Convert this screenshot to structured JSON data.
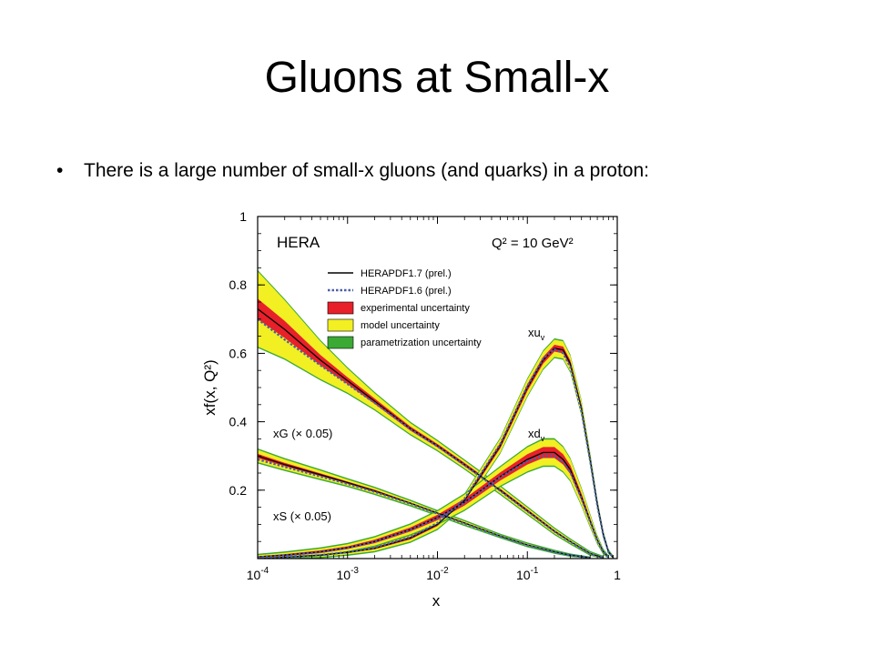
{
  "slide": {
    "title": "Gluons at Small-x",
    "bullet_symbol": "•",
    "bullet_text": "There is a large number of small-x gluons (and quarks) in a proton:"
  },
  "chart_data": {
    "type": "line",
    "collaboration_label": "HERA",
    "q2_label": "Q² = 10 GeV²",
    "xlabel": "x",
    "ylabel": "xf(x, Q²)",
    "x_scale": "log",
    "xlim": [
      0.0001,
      1
    ],
    "ylim": [
      0,
      1
    ],
    "x_ticks": [
      {
        "value": 0.0001,
        "base": "10",
        "exp": "-4"
      },
      {
        "value": 0.001,
        "base": "10",
        "exp": "-3"
      },
      {
        "value": 0.01,
        "base": "10",
        "exp": "-2"
      },
      {
        "value": 0.1,
        "base": "10",
        "exp": "-1"
      },
      {
        "value": 1,
        "base": "1",
        "exp": ""
      }
    ],
    "y_ticks": [
      {
        "value": 0.2,
        "label": "0.2"
      },
      {
        "value": 0.4,
        "label": "0.4"
      },
      {
        "value": 0.6,
        "label": "0.6"
      },
      {
        "value": 0.8,
        "label": "0.8"
      },
      {
        "value": 1.0,
        "label": "1"
      }
    ],
    "legend": [
      {
        "label": "HERAPDF1.7 (prel.)",
        "kind": "line",
        "color": "#000000"
      },
      {
        "label": "HERAPDF1.6 (prel.)",
        "kind": "dotted",
        "color": "#4a5fa8"
      },
      {
        "label": "experimental uncertainty",
        "kind": "box",
        "color": "#e8202a"
      },
      {
        "label": "model uncertainty",
        "kind": "box",
        "color": "#f2ef22"
      },
      {
        "label": "parametrization uncertainty",
        "kind": "box",
        "color": "#3aaa35"
      }
    ],
    "colors": {
      "experimental": "#e8202a",
      "model": "#f2ef22",
      "parametrization": "#3aaa35",
      "line17": "#000000",
      "line16": "#4a5fa8"
    },
    "series": [
      {
        "name": "xG (× 0.05)",
        "x": [
          0.0001,
          0.0002,
          0.0005,
          0.001,
          0.002,
          0.005,
          0.01,
          0.02,
          0.05,
          0.1,
          0.2,
          0.3,
          0.5,
          0.7
        ],
        "y": [
          0.73,
          0.67,
          0.58,
          0.52,
          0.46,
          0.38,
          0.33,
          0.275,
          0.2,
          0.14,
          0.08,
          0.05,
          0.015,
          0.002
        ],
        "band_model": [
          0.08,
          0.06,
          0.04,
          0.025,
          0.015,
          0.01,
          0.008,
          0.006,
          0.006,
          0.005,
          0.004,
          0.003,
          0.002,
          0.001
        ],
        "band_exp": [
          0.03,
          0.025,
          0.015,
          0.01,
          0.008,
          0.006,
          0.005,
          0.005,
          0.004,
          0.004,
          0.003,
          0.002,
          0.001,
          0.001
        ],
        "y_alt": [
          0.7,
          0.64,
          0.565,
          0.51,
          0.455,
          0.378,
          0.328,
          0.273,
          0.198,
          0.138,
          0.079,
          0.049,
          0.014,
          0.002
        ]
      },
      {
        "name": "xS (× 0.05)",
        "x": [
          0.0001,
          0.0002,
          0.0005,
          0.001,
          0.002,
          0.005,
          0.01,
          0.02,
          0.05,
          0.1,
          0.2,
          0.3,
          0.5
        ],
        "y": [
          0.3,
          0.275,
          0.245,
          0.222,
          0.198,
          0.162,
          0.133,
          0.104,
          0.066,
          0.04,
          0.02,
          0.01,
          0.002
        ],
        "band_model": [
          0.012,
          0.01,
          0.008,
          0.006,
          0.005,
          0.004,
          0.003,
          0.003,
          0.002,
          0.002,
          0.001,
          0.001,
          0.0
        ],
        "band_exp": [
          0.006,
          0.005,
          0.004,
          0.003,
          0.003,
          0.002,
          0.002,
          0.002,
          0.001,
          0.001,
          0.001,
          0.0,
          0.0
        ],
        "y_alt": [
          0.29,
          0.268,
          0.24,
          0.218,
          0.195,
          0.16,
          0.131,
          0.102,
          0.065,
          0.039,
          0.019,
          0.01,
          0.002
        ]
      },
      {
        "name": "xu_v",
        "label_base": "xu",
        "label_sub": "v",
        "x": [
          0.0001,
          0.0002,
          0.0005,
          0.001,
          0.002,
          0.005,
          0.01,
          0.02,
          0.05,
          0.1,
          0.15,
          0.2,
          0.25,
          0.3,
          0.4,
          0.5,
          0.6,
          0.7,
          0.8,
          0.9
        ],
        "y": [
          0.0,
          0.004,
          0.01,
          0.018,
          0.03,
          0.06,
          0.1,
          0.17,
          0.33,
          0.5,
          0.58,
          0.615,
          0.61,
          0.57,
          0.44,
          0.29,
          0.16,
          0.07,
          0.02,
          0.003
        ],
        "band_model": [
          0.002,
          0.002,
          0.003,
          0.004,
          0.005,
          0.006,
          0.008,
          0.01,
          0.012,
          0.014,
          0.015,
          0.015,
          0.015,
          0.014,
          0.012,
          0.01,
          0.007,
          0.004,
          0.002,
          0.001
        ],
        "band_exp": [
          0.001,
          0.001,
          0.002,
          0.002,
          0.003,
          0.004,
          0.005,
          0.006,
          0.008,
          0.01,
          0.01,
          0.01,
          0.01,
          0.009,
          0.008,
          0.006,
          0.004,
          0.003,
          0.001,
          0.001
        ],
        "y_alt": [
          0.0,
          0.004,
          0.01,
          0.019,
          0.032,
          0.063,
          0.104,
          0.175,
          0.335,
          0.505,
          0.585,
          0.612,
          0.6,
          0.56,
          0.43,
          0.285,
          0.155,
          0.068,
          0.019,
          0.003
        ]
      },
      {
        "name": "xd_v",
        "label_base": "xd",
        "label_sub": "v",
        "x": [
          0.0001,
          0.0002,
          0.0005,
          0.001,
          0.002,
          0.005,
          0.01,
          0.02,
          0.05,
          0.1,
          0.15,
          0.2,
          0.25,
          0.3,
          0.4,
          0.5,
          0.6,
          0.7,
          0.8
        ],
        "y": [
          0.005,
          0.01,
          0.02,
          0.032,
          0.05,
          0.085,
          0.12,
          0.165,
          0.24,
          0.29,
          0.31,
          0.31,
          0.29,
          0.26,
          0.18,
          0.11,
          0.055,
          0.02,
          0.004
        ],
        "band_model": [
          0.003,
          0.004,
          0.005,
          0.006,
          0.007,
          0.008,
          0.01,
          0.012,
          0.015,
          0.02,
          0.022,
          0.022,
          0.02,
          0.018,
          0.014,
          0.01,
          0.006,
          0.003,
          0.001
        ],
        "band_exp": [
          0.002,
          0.003,
          0.004,
          0.004,
          0.005,
          0.006,
          0.008,
          0.01,
          0.012,
          0.015,
          0.016,
          0.016,
          0.015,
          0.013,
          0.01,
          0.007,
          0.004,
          0.002,
          0.001
        ],
        "y_alt": [
          0.004,
          0.009,
          0.019,
          0.031,
          0.049,
          0.084,
          0.118,
          0.163,
          0.238,
          0.285,
          0.3,
          0.3,
          0.282,
          0.252,
          0.175,
          0.107,
          0.053,
          0.019,
          0.004
        ]
      }
    ]
  }
}
